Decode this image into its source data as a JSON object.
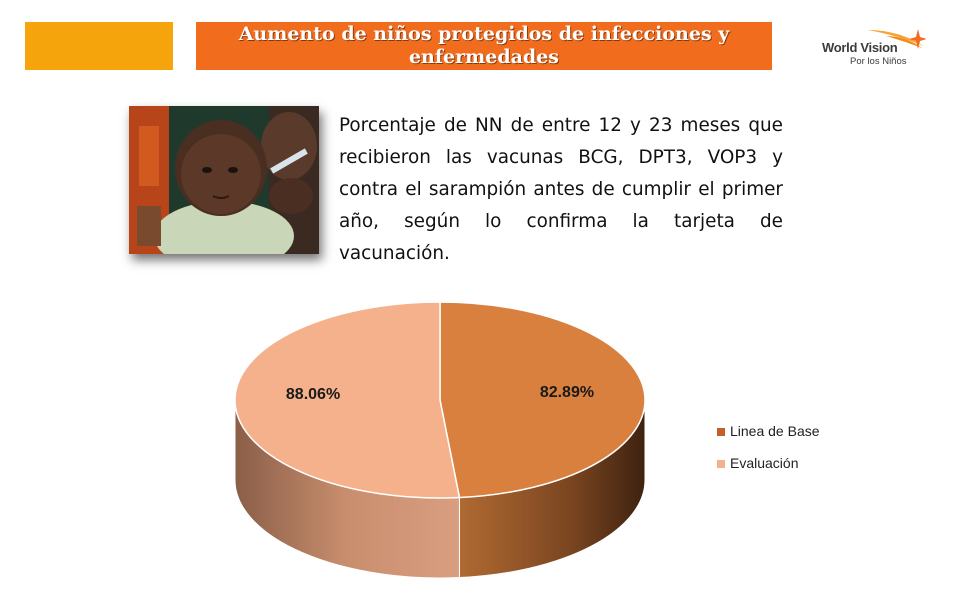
{
  "header": {
    "title": "Aumento de niños protegidos de infecciones y enfermedades"
  },
  "logo": {
    "name": "World Vision",
    "tagline": "Por los Niños",
    "icon": "star-sparkle-icon"
  },
  "photo": {
    "icon": "baby-vaccination-photo"
  },
  "description": "Porcentaje de NN de entre 12 y 23 meses que recibieron las vacunas BCG, DPT3, VOP3 y contra el sarampión antes de cumplir el primer año, según lo confirma la tarjeta de vacunación.",
  "colors": {
    "accent": "#f5a50b",
    "title_bar": "#f26c1e",
    "series_base": "#d9803f",
    "series_eval": "#f4b18c"
  },
  "chart_data": {
    "type": "pie",
    "style": "3d",
    "categories": [
      "Linea de Base",
      "Evaluación"
    ],
    "values": [
      82.89,
      88.06
    ],
    "data_labels": [
      "82.89%",
      "88.06%"
    ],
    "legend_position": "right"
  }
}
